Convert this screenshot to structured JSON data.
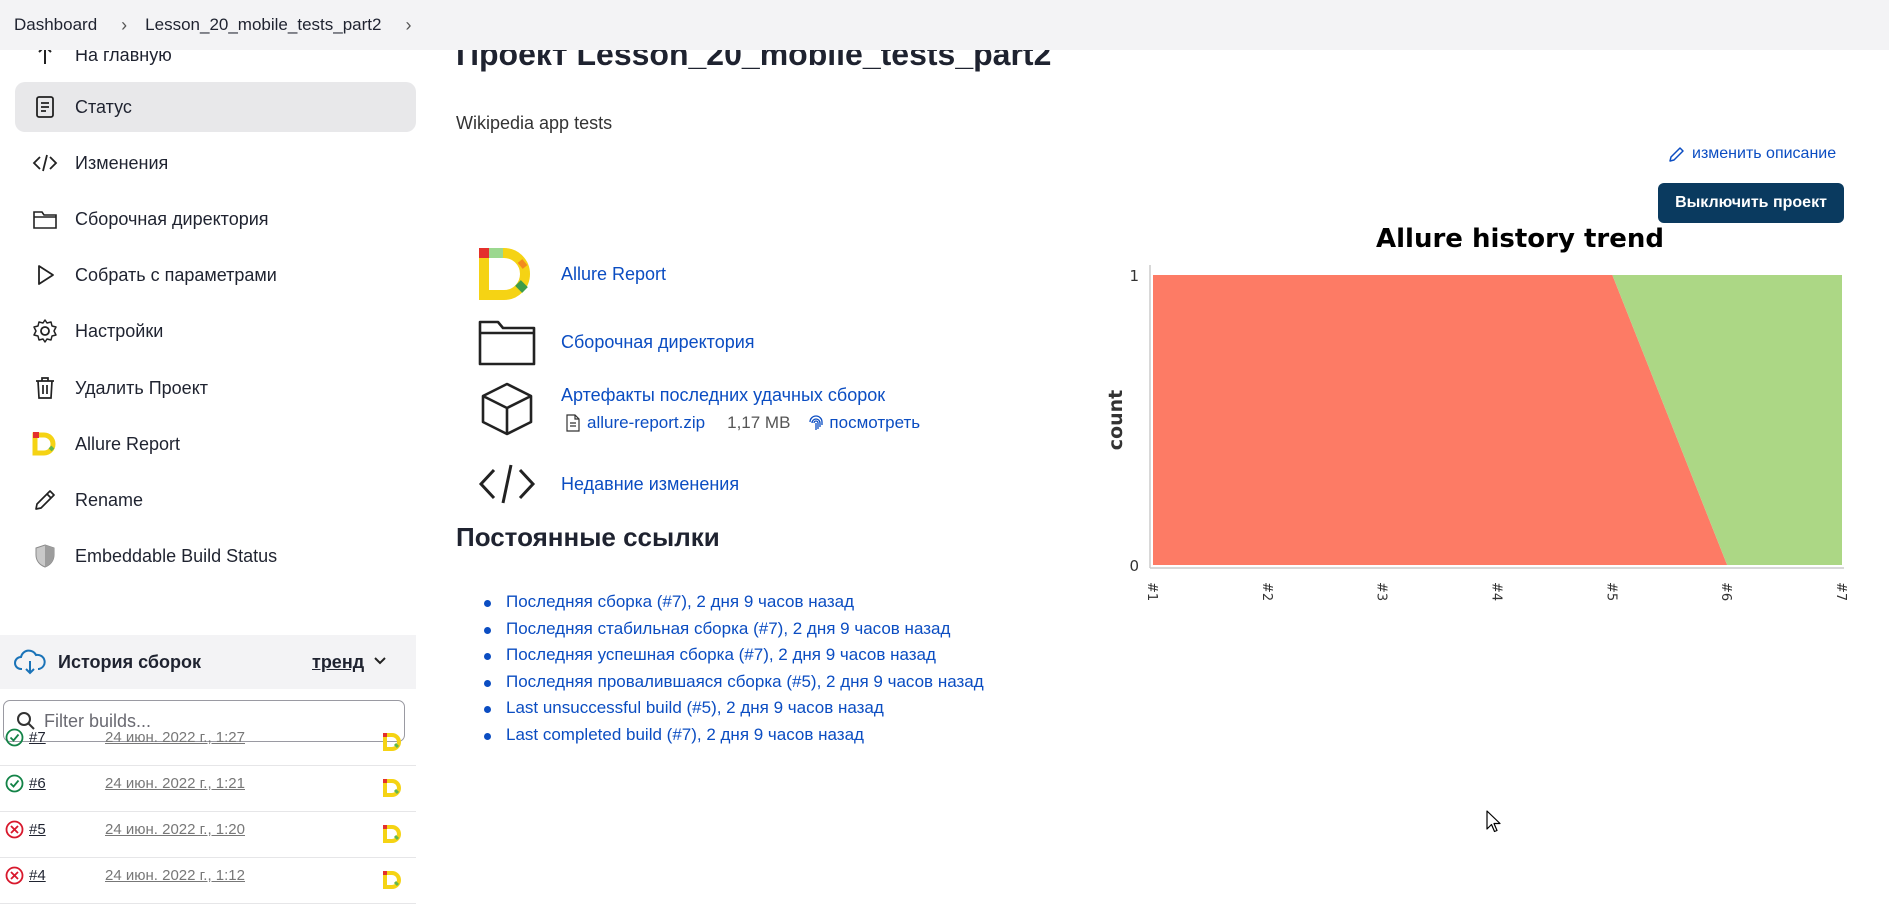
{
  "breadcrumb": [
    "Dashboard",
    "Lesson_20_mobile_tests_part2"
  ],
  "sidebar": {
    "items": [
      {
        "label": "На главную",
        "icon": "arrow-up-icon"
      },
      {
        "label": "Статус",
        "icon": "notepad-icon"
      },
      {
        "label": "Изменения",
        "icon": "code-icon"
      },
      {
        "label": "Сборочная директория",
        "icon": "folder-icon"
      },
      {
        "label": "Собрать с параметрами",
        "icon": "play-icon"
      },
      {
        "label": "Настройки",
        "icon": "gear-icon"
      },
      {
        "label": "Удалить Проект",
        "icon": "trash-icon"
      },
      {
        "label": "Allure Report",
        "icon": "allure-logo-icon"
      },
      {
        "label": "Rename",
        "icon": "pencil-icon"
      },
      {
        "label": "Embeddable Build Status",
        "icon": "shield-icon"
      }
    ]
  },
  "history": {
    "title": "История сборок",
    "trend_label": "тренд",
    "filter_placeholder": "Filter builds...",
    "builds": [
      {
        "num": "#7",
        "date": "24 июн. 2022 г., 1:27",
        "status": "success"
      },
      {
        "num": "#6",
        "date": "24 июн. 2022 г., 1:21",
        "status": "success"
      },
      {
        "num": "#5",
        "date": "24 июн. 2022 г., 1:20",
        "status": "failure"
      },
      {
        "num": "#4",
        "date": "24 июн. 2022 г., 1:12",
        "status": "failure"
      }
    ]
  },
  "main": {
    "title": "Проект Lesson_20_mobile_tests_part2",
    "description": "Wikipedia app tests",
    "edit_description": "изменить описание",
    "disable_button": "Выключить проект",
    "links": {
      "allure": "Allure Report",
      "workspace": "Сборочная директория",
      "artifacts": "Артефакты последних удачных сборок",
      "artifact_file": "allure-report.zip",
      "artifact_size": "1,17 MB",
      "artifact_view": "посмотреть",
      "recent_changes": "Недавние изменения"
    },
    "permalinks_title": "Постоянные ссылки",
    "permalinks": [
      "Последняя сборка (#7), 2 дня 9 часов назад",
      "Последняя стабильная сборка (#7), 2 дня 9 часов назад",
      "Последняя успешная сборка (#7), 2 дня 9 часов назад",
      "Последняя провалившаяся сборка (#5), 2 дня 9 часов назад",
      "Last unsuccessful build (#5), 2 дня 9 часов назад",
      "Last completed build (#7), 2 дня 9 часов назад"
    ]
  },
  "colors": {
    "failed": "#fd7b65",
    "passed": "#acd785",
    "link": "#0b4dc2",
    "primary_button": "#0a3a5f"
  },
  "chart_data": {
    "type": "area",
    "title": "Allure history trend",
    "ylabel": "count",
    "xlabel": "",
    "categories": [
      "#1",
      "#2",
      "#3",
      "#4",
      "#5",
      "#6",
      "#7"
    ],
    "ylim": [
      0,
      1
    ],
    "yticks": [
      0,
      1
    ],
    "series": [
      {
        "color": "#fd7b65",
        "values": [
          1,
          1,
          1,
          1,
          1,
          0,
          0
        ]
      },
      {
        "color": "#acd785",
        "values": [
          0,
          0,
          0,
          0,
          0,
          1,
          1
        ]
      }
    ]
  }
}
